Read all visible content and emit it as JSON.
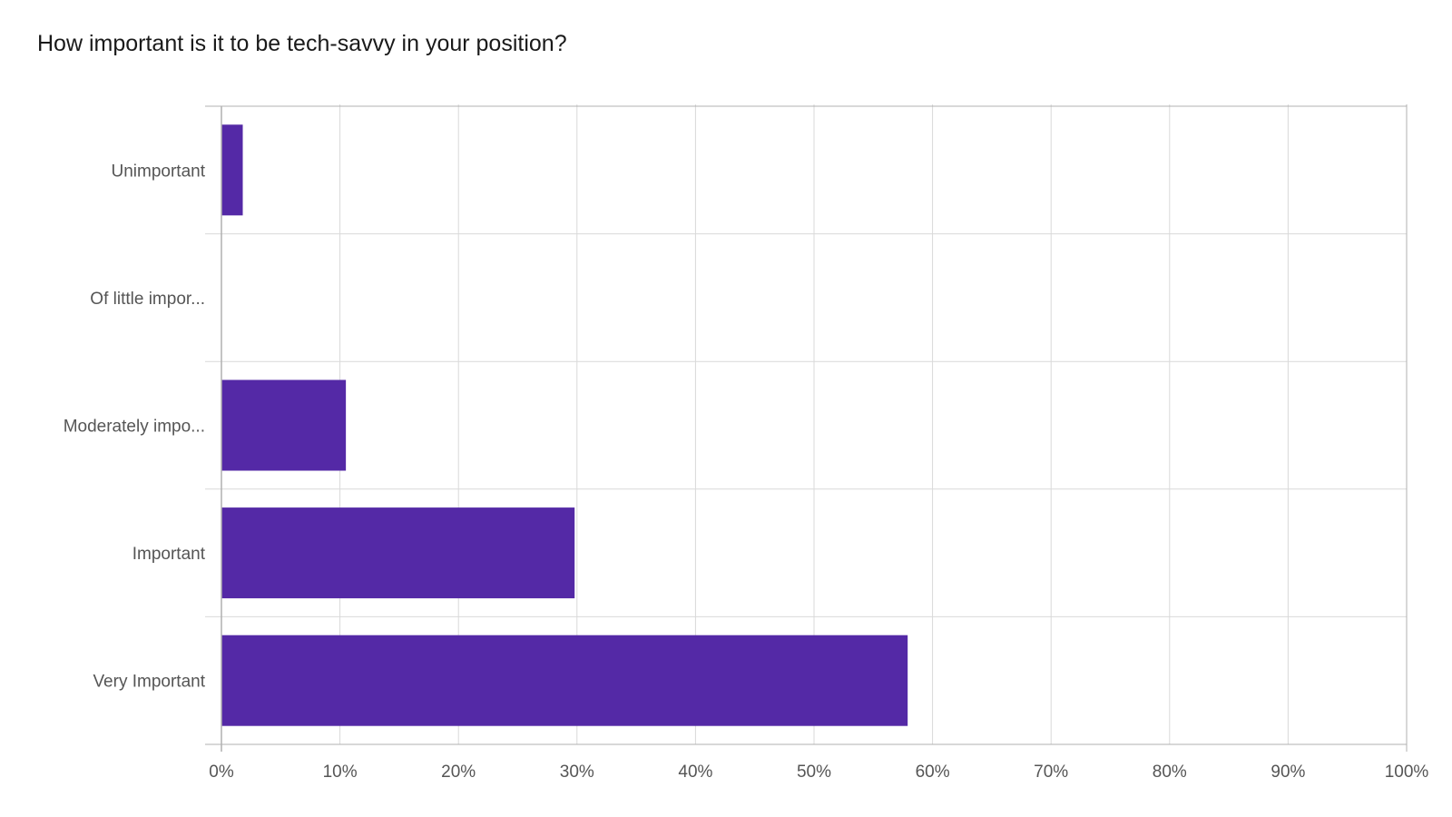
{
  "chart_data": {
    "type": "bar",
    "orientation": "horizontal",
    "title": "How important is it to be tech-savvy in your position?",
    "categories": [
      "Unimportant",
      "Of little impor...",
      "Moderately impo...",
      "Important",
      "Very Important"
    ],
    "values": [
      1.8,
      0,
      10.5,
      29.8,
      57.9
    ],
    "xlabel": "",
    "ylabel": "",
    "xlim": [
      0,
      100
    ],
    "x_ticks": [
      "0%",
      "10%",
      "20%",
      "30%",
      "40%",
      "50%",
      "60%",
      "70%",
      "80%",
      "90%",
      "100%"
    ],
    "grid": true,
    "legend": "none",
    "bar_color": "#5429a6",
    "grid_color": "#d9d9d9",
    "axis_color": "#b0b0b0"
  }
}
